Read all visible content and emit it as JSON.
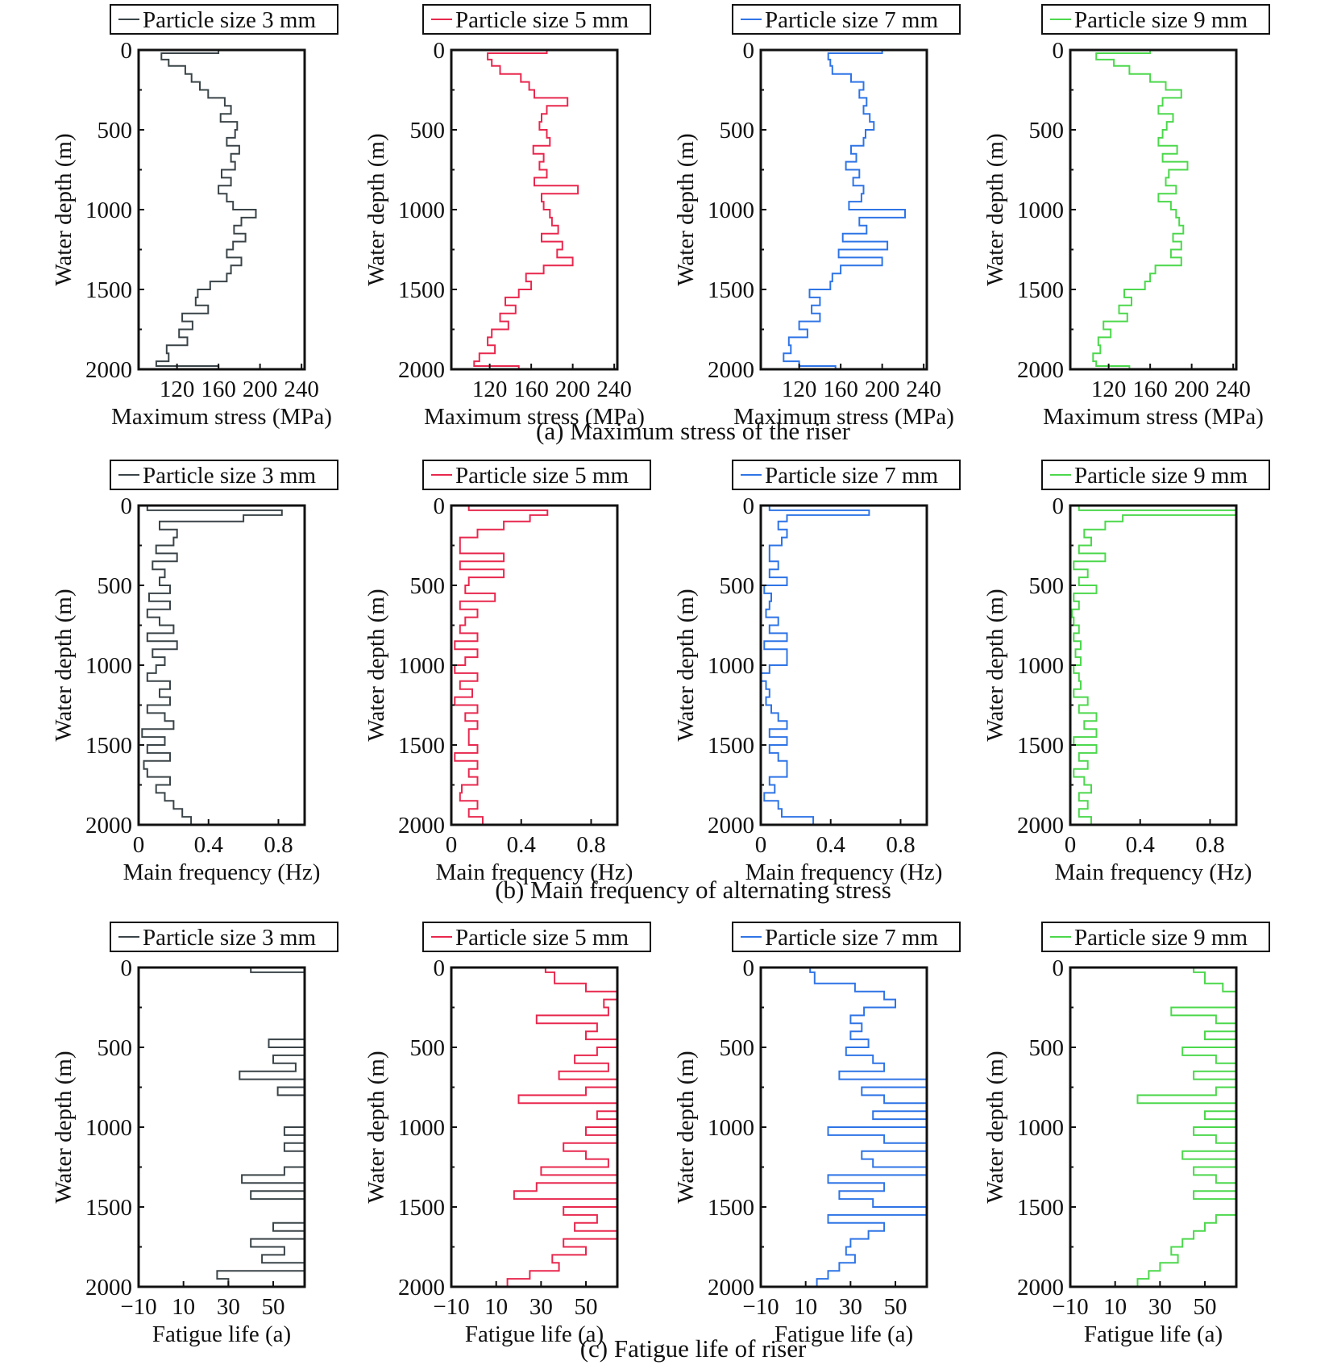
{
  "figure": {
    "row_captions": [
      "(a) Maximum stress of the riser",
      "(b) Main frequency of alternating stress",
      "(c) Fatigue life of riser"
    ]
  },
  "series_styles": [
    {
      "name": "Particle size 3 mm",
      "color": "#3a4448"
    },
    {
      "name": "Particle size 5 mm",
      "color": "#e8284e"
    },
    {
      "name": "Particle size 7 mm",
      "color": "#2f74e6"
    },
    {
      "name": "Particle size 9 mm",
      "color": "#4cd84c"
    }
  ],
  "chart_data": [
    {
      "type": "line",
      "row": "a",
      "title": "(a) Maximum stress of the riser",
      "xlabel": "Maximum stress (MPa)",
      "ylabel": "Water depth (m)",
      "xlim": [
        83,
        243
      ],
      "ylim": [
        0,
        2000
      ],
      "y_inverted": true,
      "xticks": [
        120,
        160,
        200,
        240
      ],
      "yticks": [
        0,
        500,
        1000,
        1500,
        2000
      ],
      "depths": [
        0,
        20,
        60,
        100,
        150,
        200,
        250,
        300,
        350,
        400,
        450,
        500,
        550,
        600,
        650,
        700,
        750,
        800,
        850,
        900,
        950,
        1000,
        1050,
        1100,
        1150,
        1200,
        1250,
        1300,
        1350,
        1400,
        1450,
        1500,
        1550,
        1600,
        1650,
        1700,
        1750,
        1800,
        1850,
        1900,
        1950,
        1980,
        2000
      ],
      "series": [
        {
          "name": "Particle size 3 mm",
          "values": [
            160,
            105,
            112,
            128,
            134,
            142,
            150,
            166,
            172,
            162,
            178,
            176,
            168,
            180,
            172,
            176,
            163,
            172,
            160,
            168,
            174,
            196,
            182,
            175,
            186,
            174,
            168,
            182,
            172,
            168,
            152,
            140,
            138,
            150,
            125,
            135,
            122,
            130,
            110,
            112,
            100,
            160,
            205
          ]
        },
        {
          "name": "Particle size 5 mm",
          "values": [
            175,
            118,
            122,
            130,
            150,
            158,
            163,
            195,
            175,
            170,
            168,
            175,
            178,
            162,
            172,
            168,
            175,
            163,
            205,
            170,
            172,
            178,
            180,
            186,
            170,
            190,
            185,
            200,
            172,
            155,
            160,
            148,
            135,
            145,
            130,
            138,
            122,
            118,
            125,
            110,
            105,
            148,
            210
          ]
        },
        {
          "name": "Particle size 7 mm",
          "values": [
            200,
            148,
            150,
            152,
            170,
            182,
            178,
            185,
            182,
            188,
            192,
            184,
            182,
            170,
            175,
            165,
            178,
            172,
            182,
            180,
            168,
            222,
            178,
            185,
            162,
            205,
            158,
            200,
            160,
            152,
            150,
            130,
            140,
            132,
            140,
            120,
            128,
            110,
            112,
            105,
            120,
            155,
            210
          ]
        },
        {
          "name": "Particle size 9 mm",
          "values": [
            160,
            108,
            125,
            140,
            160,
            175,
            190,
            172,
            168,
            182,
            176,
            172,
            168,
            186,
            172,
            196,
            178,
            175,
            185,
            168,
            180,
            185,
            188,
            192,
            182,
            190,
            180,
            190,
            165,
            160,
            155,
            135,
            142,
            130,
            138,
            115,
            122,
            110,
            112,
            105,
            108,
            140,
            205
          ]
        }
      ]
    },
    {
      "type": "line",
      "row": "b",
      "title": "(b) Main frequency of alternating stress",
      "xlabel": "Main frequency (Hz)",
      "ylabel": "Water depth (m)",
      "xlim": [
        0,
        0.95
      ],
      "ylim": [
        0,
        2000
      ],
      "y_inverted": true,
      "xticks": [
        0,
        0.4,
        0.8
      ],
      "yticks": [
        0,
        500,
        1000,
        1500,
        2000
      ],
      "depths": [
        0,
        30,
        60,
        100,
        150,
        200,
        250,
        300,
        350,
        400,
        450,
        500,
        550,
        600,
        650,
        700,
        750,
        800,
        850,
        900,
        950,
        1000,
        1050,
        1100,
        1150,
        1200,
        1250,
        1300,
        1350,
        1400,
        1450,
        1500,
        1550,
        1600,
        1650,
        1700,
        1750,
        1800,
        1850,
        1900,
        1950,
        2000
      ],
      "series": [
        {
          "name": "Particle size 3 mm",
          "values": [
            0.05,
            0.82,
            0.6,
            0.12,
            0.22,
            0.2,
            0.1,
            0.22,
            0.08,
            0.15,
            0.12,
            0.18,
            0.06,
            0.18,
            0.05,
            0.12,
            0.2,
            0.05,
            0.22,
            0.08,
            0.15,
            0.1,
            0.05,
            0.18,
            0.12,
            0.18,
            0.05,
            0.15,
            0.2,
            0.02,
            0.15,
            0.05,
            0.18,
            0.03,
            0.05,
            0.18,
            0.1,
            0.15,
            0.2,
            0.25,
            0.3,
            0.33
          ]
        },
        {
          "name": "Particle size 5 mm",
          "values": [
            0.1,
            0.55,
            0.45,
            0.3,
            0.15,
            0.05,
            0.05,
            0.3,
            0.05,
            0.3,
            0.1,
            0.08,
            0.25,
            0.05,
            0.15,
            0.08,
            0.05,
            0.15,
            0.02,
            0.15,
            0.08,
            0.02,
            0.15,
            0.05,
            0.12,
            0.02,
            0.15,
            0.08,
            0.15,
            0.1,
            0.1,
            0.15,
            0.02,
            0.15,
            0.1,
            0.15,
            0.06,
            0.05,
            0.15,
            0.1,
            0.18,
            0.2
          ]
        },
        {
          "name": "Particle size 7 mm",
          "values": [
            0.05,
            0.62,
            0.15,
            0.1,
            0.15,
            0.12,
            0.05,
            0.05,
            0.1,
            0.05,
            0.15,
            0.02,
            0.06,
            0.05,
            0.03,
            0.1,
            0.05,
            0.15,
            0.02,
            0.15,
            0.15,
            0.05,
            0.0,
            0.03,
            0.05,
            0.03,
            0.06,
            0.1,
            0.15,
            0.05,
            0.15,
            0.05,
            0.1,
            0.15,
            0.15,
            0.05,
            0.08,
            0.02,
            0.1,
            0.12,
            0.3,
            0.4
          ]
        },
        {
          "name": "Particle size 9 mm",
          "values": [
            0.05,
            0.95,
            0.3,
            0.2,
            0.08,
            0.12,
            0.05,
            0.2,
            0.02,
            0.1,
            0.05,
            0.15,
            0.02,
            0.05,
            0.01,
            0.02,
            0.05,
            0.02,
            0.06,
            0.03,
            0.06,
            0.02,
            0.05,
            0.06,
            0.02,
            0.1,
            0.05,
            0.15,
            0.08,
            0.15,
            0.02,
            0.15,
            0.05,
            0.1,
            0.02,
            0.08,
            0.12,
            0.05,
            0.1,
            0.05,
            0.12,
            0.3
          ]
        }
      ]
    },
    {
      "type": "line",
      "row": "c",
      "title": "(c) Fatigue life of riser",
      "xlabel": "Fatigue life (a)",
      "ylabel": "Water depth (m)",
      "xlim": [
        -10,
        64
      ],
      "ylim": [
        0,
        2000
      ],
      "y_inverted": true,
      "xticks": [
        -10,
        10,
        30,
        50
      ],
      "yticks": [
        0,
        500,
        1000,
        1500,
        2000
      ],
      "depths": [
        0,
        30,
        100,
        150,
        200,
        250,
        300,
        350,
        400,
        450,
        500,
        550,
        600,
        650,
        700,
        750,
        800,
        850,
        900,
        950,
        1000,
        1050,
        1100,
        1150,
        1200,
        1250,
        1300,
        1350,
        1400,
        1450,
        1500,
        1550,
        1600,
        1650,
        1700,
        1750,
        1800,
        1850,
        1900,
        1950,
        2000
      ],
      "series": [
        {
          "name": "Particle size 3 mm",
          "values": [
            40,
            64,
            64,
            64,
            64,
            64,
            64,
            64,
            64,
            48,
            64,
            50,
            60,
            35,
            64,
            52,
            64,
            64,
            64,
            64,
            55,
            64,
            55,
            64,
            64,
            55,
            36,
            64,
            40,
            64,
            64,
            64,
            50,
            64,
            40,
            55,
            45,
            64,
            25,
            30,
            15
          ]
        },
        {
          "name": "Particle size 5 mm",
          "values": [
            32,
            36,
            50,
            64,
            58,
            60,
            28,
            55,
            50,
            64,
            55,
            45,
            60,
            38,
            64,
            50,
            20,
            64,
            55,
            64,
            50,
            64,
            40,
            50,
            60,
            30,
            64,
            28,
            18,
            64,
            40,
            55,
            45,
            64,
            40,
            50,
            35,
            38,
            25,
            15,
            10
          ]
        },
        {
          "name": "Particle size 7 mm",
          "values": [
            12,
            14,
            32,
            45,
            50,
            36,
            30,
            35,
            30,
            38,
            28,
            40,
            45,
            25,
            64,
            35,
            45,
            64,
            40,
            64,
            20,
            45,
            64,
            35,
            40,
            64,
            20,
            45,
            25,
            40,
            64,
            20,
            45,
            38,
            30,
            28,
            32,
            25,
            20,
            15,
            8
          ]
        },
        {
          "name": "Particle size 9 mm",
          "values": [
            45,
            50,
            58,
            64,
            64,
            35,
            55,
            64,
            50,
            64,
            40,
            55,
            64,
            45,
            64,
            55,
            20,
            64,
            50,
            64,
            45,
            55,
            64,
            40,
            64,
            45,
            55,
            64,
            45,
            64,
            64,
            55,
            50,
            45,
            40,
            35,
            38,
            30,
            25,
            20,
            18
          ]
        }
      ]
    }
  ]
}
